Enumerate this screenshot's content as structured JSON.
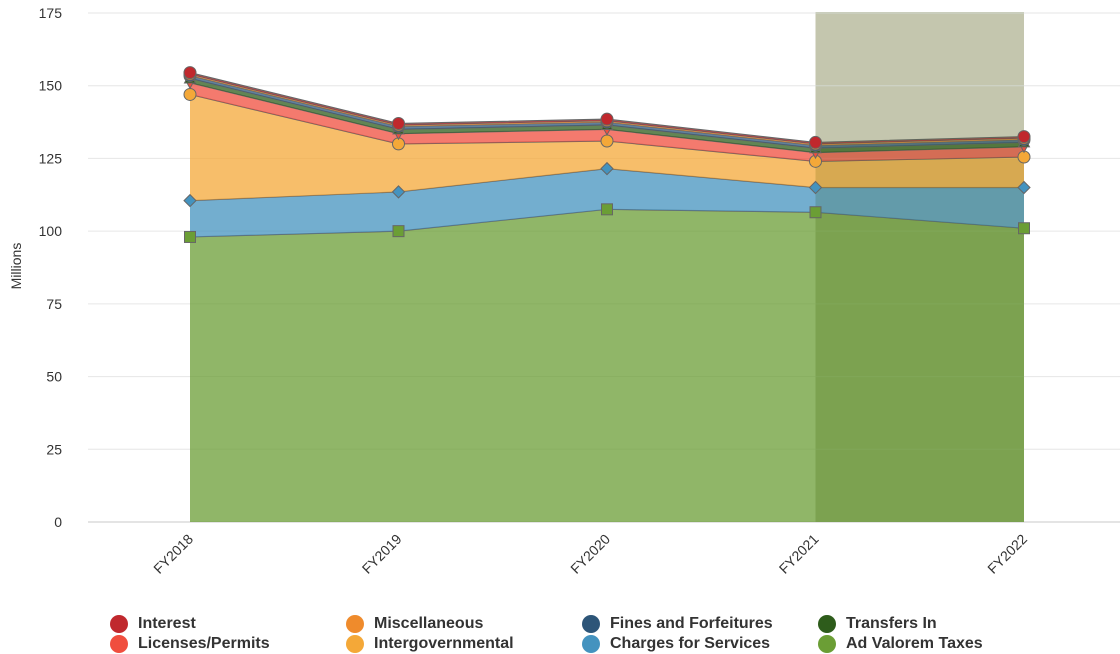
{
  "chart_data": {
    "type": "area",
    "stacked": true,
    "categories": [
      "FY2018",
      "FY2019",
      "FY2020",
      "FY2021",
      "FY2022"
    ],
    "ylabel": "Millions",
    "ylim": [
      0,
      175
    ],
    "yticks": [
      0,
      25,
      50,
      75,
      100,
      125,
      150,
      175
    ],
    "grid": true,
    "highlighted_categories": [
      "FY2021",
      "FY2022"
    ],
    "series": [
      {
        "name": "Ad Valorem Taxes",
        "color": "#6b9e35",
        "marker": "square",
        "values": [
          98,
          100,
          107.5,
          106.5,
          101
        ]
      },
      {
        "name": "Charges for Services",
        "color": "#4493bf",
        "marker": "diamond",
        "values": [
          12.5,
          13.5,
          14,
          8.5,
          14
        ]
      },
      {
        "name": "Intergovernmental",
        "color": "#f4a838",
        "marker": "circle",
        "values": [
          36.5,
          16.5,
          9.5,
          9,
          10.5
        ]
      },
      {
        "name": "Licenses/Permits",
        "color": "#f04e3e",
        "marker": "triangle-down",
        "values": [
          4,
          3.5,
          4,
          3,
          3.5
        ]
      },
      {
        "name": "Transfers In",
        "color": "#2e5c1b",
        "marker": "triangle",
        "values": [
          1.5,
          1.5,
          1.5,
          1.5,
          1.5
        ]
      },
      {
        "name": "Fines and Forfeitures",
        "color": "#2d5578",
        "marker": "circle",
        "values": [
          1,
          1,
          1,
          1,
          1
        ]
      },
      {
        "name": "Miscellaneous",
        "color": "#ef8b2c",
        "marker": "circle",
        "values": [
          0.5,
          0.5,
          0.5,
          0.5,
          0.5
        ]
      },
      {
        "name": "Interest",
        "color": "#c0282d",
        "marker": "circle",
        "values": [
          0.5,
          0.5,
          0.5,
          0.5,
          0.5
        ]
      }
    ]
  },
  "legend": {
    "items": [
      {
        "label": "Interest",
        "color": "#c0282d"
      },
      {
        "label": "Miscellaneous",
        "color": "#ef8b2c"
      },
      {
        "label": "Fines and Forfeitures",
        "color": "#2d5578"
      },
      {
        "label": "Transfers In",
        "color": "#2e5c1b"
      },
      {
        "label": "Licenses/Permits",
        "color": "#f04e3e"
      },
      {
        "label": "Intergovernmental",
        "color": "#f4a838"
      },
      {
        "label": "Charges for Services",
        "color": "#4493bf"
      },
      {
        "label": "Ad Valorem Taxes",
        "color": "#6b9e35"
      }
    ]
  }
}
